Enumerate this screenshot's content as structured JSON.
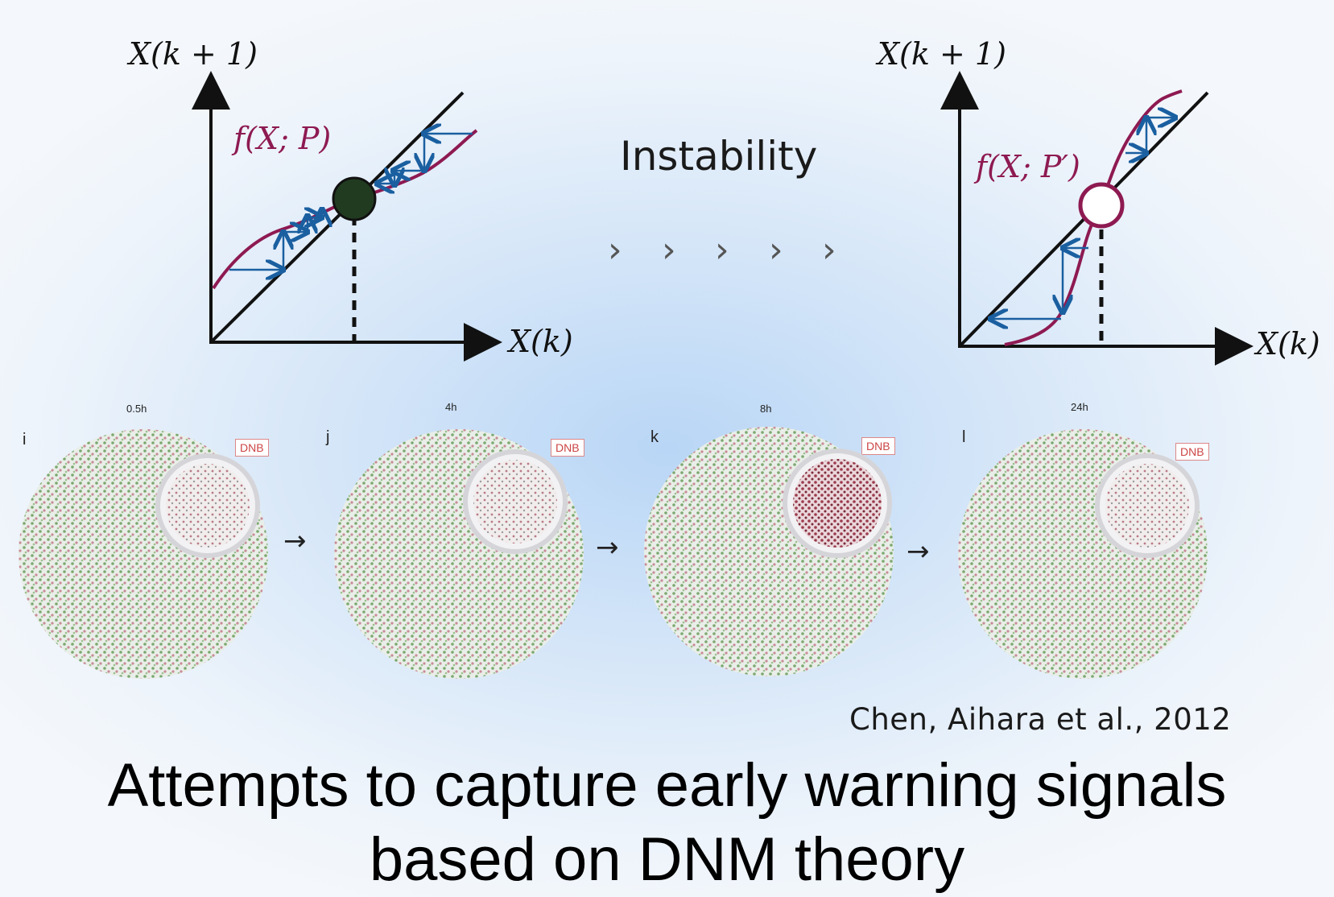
{
  "left_plot": {
    "y_axis_label": "X(k + 1)",
    "x_axis_label": "X(k)",
    "function_label": "f(X; P)"
  },
  "right_plot": {
    "y_axis_label": "X(k + 1)",
    "x_axis_label": "X(k)",
    "function_label": "f(X; P′)"
  },
  "middle": {
    "label": "Instability",
    "chevrons": [
      "›",
      "›",
      "›",
      "›",
      "›"
    ]
  },
  "network_panels": [
    {
      "letter": "i",
      "time": "0.5h",
      "tag": "DNB"
    },
    {
      "letter": "j",
      "time": "4h",
      "tag": "DNB"
    },
    {
      "letter": "k",
      "time": "8h",
      "tag": "DNB"
    },
    {
      "letter": "l",
      "time": "24h",
      "tag": "DNB"
    }
  ],
  "between_arrow": "→",
  "citation": "Chen, Aihara et al., 2012",
  "headline_line1": "Attempts to capture early warning signals",
  "headline_line2": "based on DNM theory",
  "colors": {
    "curve": "#8e1a52",
    "cobweb": "#1a5fa0",
    "stable_point": "#213b20",
    "unstable_point": "#ffffff"
  }
}
